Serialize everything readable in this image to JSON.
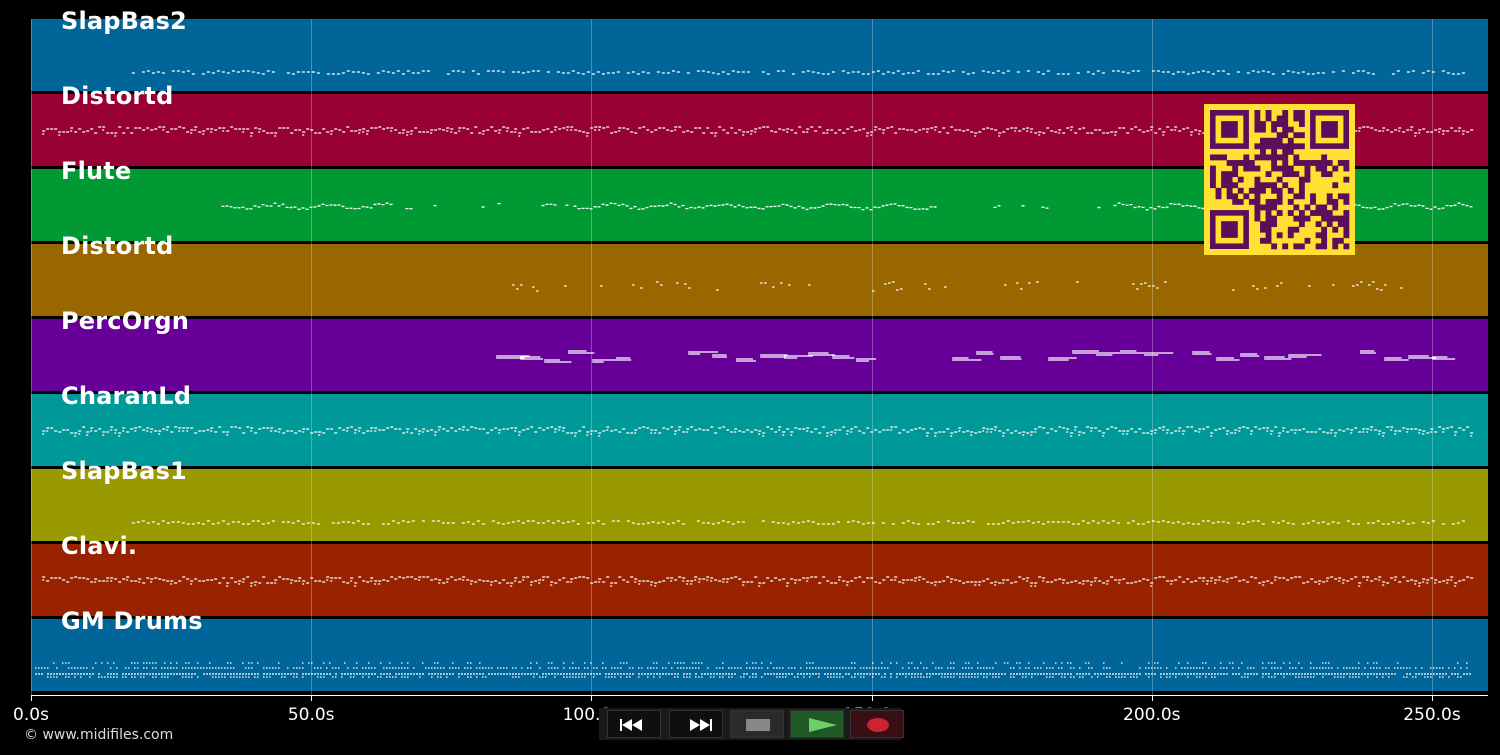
{
  "app": {
    "copyright": "© www.midifiles.com"
  },
  "tracks": [
    {
      "name": "SlapBas2",
      "color": "#006699",
      "pattern": "sparse",
      "start_s": 18,
      "end_s": 256
    },
    {
      "name": "Distortd",
      "color": "#990033",
      "pattern": "dense",
      "start_s": 2,
      "end_s": 257
    },
    {
      "name": "Flute",
      "color": "#009933",
      "pattern": "wave",
      "start_s": 34,
      "end_s": 257
    },
    {
      "name": "Distortd",
      "color": "#996600",
      "pattern": "clusters",
      "start_s": 83,
      "end_s": 257
    },
    {
      "name": "PercOrgn",
      "color": "#660099",
      "pattern": "bars",
      "start_s": 83,
      "end_s": 257
    },
    {
      "name": "CharanLd",
      "color": "#009999",
      "pattern": "dense",
      "start_s": 2,
      "end_s": 257
    },
    {
      "name": "SlapBas1",
      "color": "#999900",
      "pattern": "sparse",
      "start_s": 18,
      "end_s": 256
    },
    {
      "name": "Clavi.",
      "color": "#992200",
      "pattern": "dense",
      "start_s": 2,
      "end_s": 257
    },
    {
      "name": "GM Drums",
      "color": "#006699",
      "pattern": "drums",
      "start_s": 0,
      "end_s": 257
    }
  ],
  "timeline": {
    "max_seconds": 260,
    "ticks": [
      {
        "value": 0,
        "label": "0.0s"
      },
      {
        "value": 50,
        "label": "50.0s"
      },
      {
        "value": 100,
        "label": "100.0s"
      },
      {
        "value": 150,
        "label": "150.0s"
      },
      {
        "value": 200,
        "label": "200.0s"
      },
      {
        "value": 250,
        "label": "250.0s"
      }
    ]
  },
  "transport": {
    "buttons": [
      {
        "name": "rewind-button",
        "icon": "rewind-icon"
      },
      {
        "name": "fast-forward-button",
        "icon": "fast-forward-icon"
      },
      {
        "name": "stop-button",
        "icon": "stop-icon"
      },
      {
        "name": "play-button",
        "icon": "play-icon"
      },
      {
        "name": "record-button",
        "icon": "record-icon"
      }
    ],
    "colors": {
      "play": "#5cb85c",
      "record": "#cc2233",
      "stop": "#888888"
    }
  },
  "qr_code": {
    "color": "#ffe033",
    "dark": "#5a0f5a"
  }
}
